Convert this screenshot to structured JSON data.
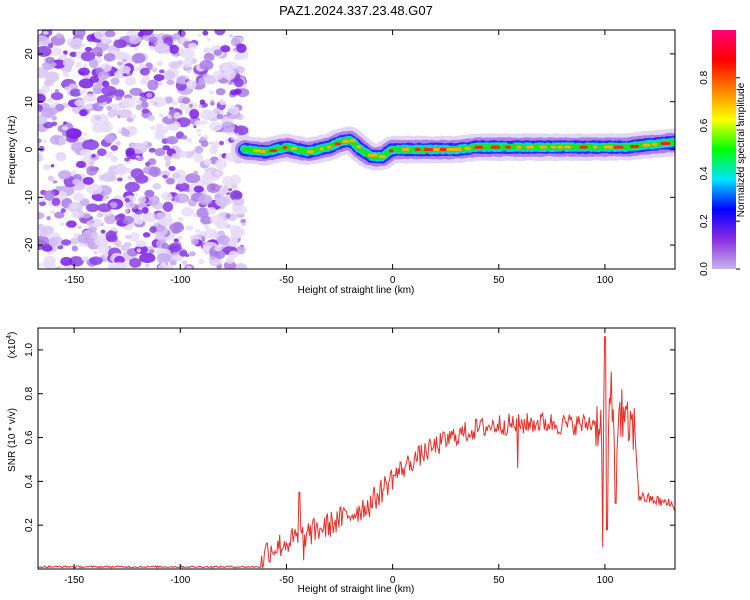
{
  "figure": {
    "title": "PAZ1.2024.337.23.48.G07"
  },
  "chart_data": [
    {
      "type": "heatmap",
      "xlabel": "Height of straight line (km)",
      "ylabel": "Frequency (Hz)",
      "xlim": [
        -167,
        133
      ],
      "ylim": [
        -25,
        25
      ],
      "xticks": [
        -150,
        -100,
        -50,
        0,
        50,
        100
      ],
      "yticks": [
        -20,
        -10,
        0,
        10,
        20
      ],
      "noise_region_x": [
        -167,
        -70
      ],
      "ridge": {
        "x": [
          -70,
          -60,
          -50,
          -40,
          -30,
          -25,
          -20,
          -15,
          -10,
          -5,
          0,
          10,
          20,
          30,
          40,
          50,
          60,
          70,
          80,
          90,
          100,
          110,
          120,
          133
        ],
        "freq": [
          0,
          -0.5,
          0.5,
          -0.5,
          0.5,
          1.5,
          2,
          0,
          -1.5,
          -1.5,
          0,
          0,
          0,
          0,
          0.5,
          0.5,
          0.5,
          0.5,
          0.5,
          0.5,
          0.5,
          0.5,
          1,
          1.5
        ]
      },
      "colorbar": {
        "label": "Normalized spectral amplitude",
        "range": [
          0,
          1
        ],
        "ticks": [
          "0.0",
          "0.2",
          "0.4",
          "0.6",
          "0.8"
        ],
        "colors": [
          "#c8b4ec",
          "#8a2be2",
          "#0000ff",
          "#00e5ff",
          "#00ff00",
          "#ffff00",
          "#ff8000",
          "#ff0000",
          "#ff0077"
        ]
      }
    },
    {
      "type": "line",
      "xlabel": "Height of straight line (km)",
      "ylabel": "SNR (10 * v/v)",
      "yscale_label": "(x10",
      "yscale_exp": "4",
      "xlim": [
        -167,
        133
      ],
      "ylim": [
        0,
        1.1
      ],
      "xticks": [
        -150,
        -100,
        -50,
        0,
        50,
        100
      ],
      "yticks": [
        0.2,
        0.4,
        0.6,
        0.8,
        1.0
      ],
      "color": "#e8302a",
      "profile": {
        "x": [
          -167,
          -62,
          -60,
          -50,
          -45,
          -40,
          -30,
          -20,
          -10,
          0,
          10,
          20,
          30,
          40,
          50,
          60,
          70,
          80,
          90,
          95,
          100,
          105,
          110,
          114,
          116,
          125,
          133
        ],
        "y": [
          0.01,
          0.01,
          0.08,
          0.12,
          0.14,
          0.16,
          0.2,
          0.25,
          0.3,
          0.42,
          0.5,
          0.56,
          0.61,
          0.64,
          0.66,
          0.66,
          0.67,
          0.66,
          0.66,
          0.67,
          0.66,
          0.66,
          0.65,
          0.64,
          0.33,
          0.31,
          0.29
        ]
      },
      "spikes": [
        {
          "x": -44,
          "y": 0.35
        },
        {
          "x": -42,
          "y": 0.04
        },
        {
          "x": 59,
          "y": 0.46
        },
        {
          "x": 99,
          "y": 0.1
        },
        {
          "x": 100,
          "y": 1.06
        },
        {
          "x": 101,
          "y": 0.18
        },
        {
          "x": 103,
          "y": 0.9
        },
        {
          "x": 105,
          "y": 0.3
        },
        {
          "x": 108,
          "y": 0.82
        }
      ]
    }
  ]
}
